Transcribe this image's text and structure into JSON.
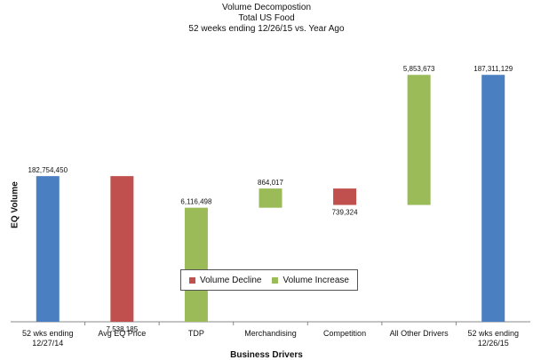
{
  "chart_data": {
    "type": "bar",
    "subtype": "waterfall",
    "title": "Volume Decompostion",
    "subtitle_lines": [
      "Total US Food",
      "52 weeks ending 12/26/15 vs. Year Ago"
    ],
    "ylabel": "EQ Volume",
    "xlabel": "Business Drivers",
    "categories": [
      "52 wks ending 12/27/14",
      "Avg EQ Price",
      "TDP",
      "Merchandising",
      "Competition",
      "All Other Drivers",
      "52 wks ending 12/26/15"
    ],
    "category_label_lines": [
      [
        "52 wks ending",
        "12/27/14"
      ],
      [
        "Avg EQ Price"
      ],
      [
        "TDP"
      ],
      [
        "Merchandising"
      ],
      [
        "Competition"
      ],
      [
        "All Other Drivers"
      ],
      [
        "52 wks ending",
        "12/26/15"
      ]
    ],
    "bars": [
      {
        "category": "52 wks ending 12/27/14",
        "kind": "total",
        "value": 182754450,
        "label": "182,754,450"
      },
      {
        "category": "Avg EQ Price",
        "kind": "decline",
        "value": -7538185,
        "label": "7,538,185"
      },
      {
        "category": "TDP",
        "kind": "increase",
        "value": 6116498,
        "label": "6,116,498"
      },
      {
        "category": "Merchandising",
        "kind": "increase",
        "value": 864017,
        "label": "864,017"
      },
      {
        "category": "Competition",
        "kind": "decline",
        "value": -739324,
        "label": "739,324"
      },
      {
        "category": "All Other Drivers",
        "kind": "increase",
        "value": 5853673,
        "label": "5,853,673"
      },
      {
        "category": "52 wks ending 12/26/15",
        "kind": "total",
        "value": 187311129,
        "label": "187,311,129"
      }
    ],
    "legend": {
      "position": "bottom-center",
      "entries": [
        "Volume Decline",
        "Volume Increase"
      ]
    },
    "colors": {
      "total": "#4a7fc1",
      "decline": "#c0504d",
      "increase": "#9bbb59"
    },
    "grid": false
  }
}
